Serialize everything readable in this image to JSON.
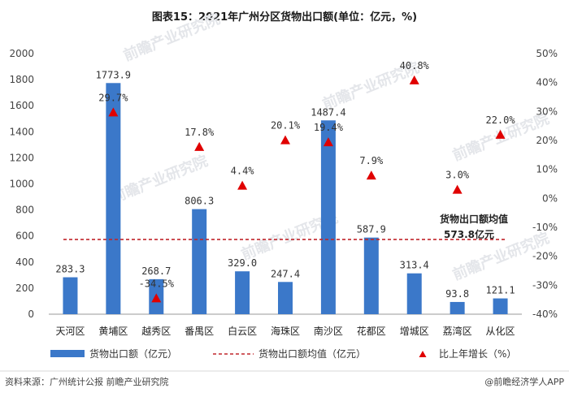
{
  "title": "图表15：2021年广州分区货物出口额(单位：亿元，%)",
  "watermark": "前瞻产业研究院",
  "footer": {
    "source": "资料来源：广州统计公报 前瞻产业研究院",
    "brand": "@前瞻经济学人APP"
  },
  "chart_data": {
    "type": "bar",
    "categories": [
      "天河区",
      "黄埔区",
      "越秀区",
      "番禺区",
      "白云区",
      "海珠区",
      "南沙区",
      "花都区",
      "增城区",
      "荔湾区",
      "从化区"
    ],
    "series": [
      {
        "name": "货物出口额（亿元）",
        "type": "bar",
        "axis": "left",
        "color": "#3b78c9",
        "values": [
          283.3,
          1773.9,
          268.7,
          806.3,
          329.0,
          247.4,
          1487.4,
          587.9,
          313.4,
          93.8,
          121.1
        ],
        "labels": [
          "283.3",
          "1773.9",
          "268.7",
          "806.3",
          "329.0",
          "247.4",
          "1487.4",
          "587.9",
          "313.4",
          "93.8",
          "121.1"
        ]
      },
      {
        "name": "比上年增长（%）",
        "type": "scatter",
        "marker": "triangle",
        "axis": "right",
        "color": "#e00000",
        "values": [
          null,
          29.7,
          -34.5,
          17.8,
          4.4,
          20.1,
          19.4,
          7.9,
          40.8,
          3.0,
          22.0
        ],
        "labels": [
          "",
          "29.7%",
          "-34.5%",
          "17.8%",
          "4.4%",
          "20.1%",
          "19.4%",
          "7.9%",
          "40.8%",
          "3.0%",
          "22.0%"
        ]
      },
      {
        "name": "货物出口额均值（亿元）",
        "type": "hline",
        "axis": "left",
        "color": "#c0262b",
        "value": 573.8
      }
    ],
    "average_annotation": {
      "line1": "货物出口额均值",
      "line2": "573.8亿元"
    },
    "y_left": {
      "min": 0,
      "max": 2000,
      "ticks": [
        "0",
        "200",
        "400",
        "600",
        "800",
        "1000",
        "1200",
        "1400",
        "1600",
        "1800",
        "2000"
      ]
    },
    "y_right": {
      "min": -40,
      "max": 50,
      "ticks": [
        "-40%",
        "-30%",
        "-20%",
        "-10%",
        "0%",
        "10%",
        "20%",
        "30%",
        "40%",
        "50%"
      ]
    },
    "legend_position": "bottom",
    "grid": false
  }
}
